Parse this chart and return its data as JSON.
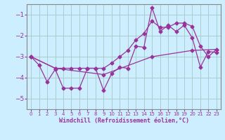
{
  "xlabel": "Windchill (Refroidissement éolien,°C)",
  "bg_color": "#cceeff",
  "grid_color": "#aacccc",
  "line_color": "#993399",
  "xlim": [
    -0.5,
    23.5
  ],
  "ylim": [
    -5.5,
    -0.5
  ],
  "xticks": [
    0,
    1,
    2,
    3,
    4,
    5,
    6,
    7,
    8,
    9,
    10,
    11,
    12,
    13,
    14,
    15,
    16,
    17,
    18,
    19,
    20,
    21,
    22,
    23
  ],
  "yticks": [
    -5,
    -4,
    -3,
    -2,
    -1
  ],
  "line1_x": [
    0,
    1,
    2,
    3,
    4,
    5,
    6,
    7,
    8,
    9,
    10,
    11,
    12,
    13,
    14,
    15,
    16,
    17,
    18,
    19,
    20,
    21,
    22,
    23
  ],
  "line1_y": [
    -3.0,
    -3.4,
    -4.2,
    -3.6,
    -4.5,
    -4.5,
    -4.5,
    -3.55,
    -3.55,
    -4.6,
    -3.8,
    -3.5,
    -3.55,
    -2.5,
    -2.55,
    -0.65,
    -1.8,
    -1.5,
    -1.8,
    -1.5,
    -2.1,
    -3.5,
    -2.75,
    -2.8
  ],
  "line2_x": [
    0,
    3,
    4,
    5,
    6,
    7,
    8,
    9,
    10,
    11,
    12,
    13,
    14,
    15,
    16,
    17,
    18,
    19,
    20,
    21,
    22,
    23
  ],
  "line2_y": [
    -3.0,
    -3.55,
    -3.55,
    -3.55,
    -3.55,
    -3.55,
    -3.55,
    -3.55,
    -3.3,
    -3.0,
    -2.7,
    -2.2,
    -1.9,
    -1.3,
    -1.6,
    -1.6,
    -1.4,
    -1.4,
    -1.55,
    -2.5,
    -3.0,
    -2.65
  ],
  "line3_x": [
    0,
    3,
    9,
    15,
    20,
    23
  ],
  "line3_y": [
    -3.0,
    -3.55,
    -3.85,
    -3.0,
    -2.7,
    -2.65
  ]
}
